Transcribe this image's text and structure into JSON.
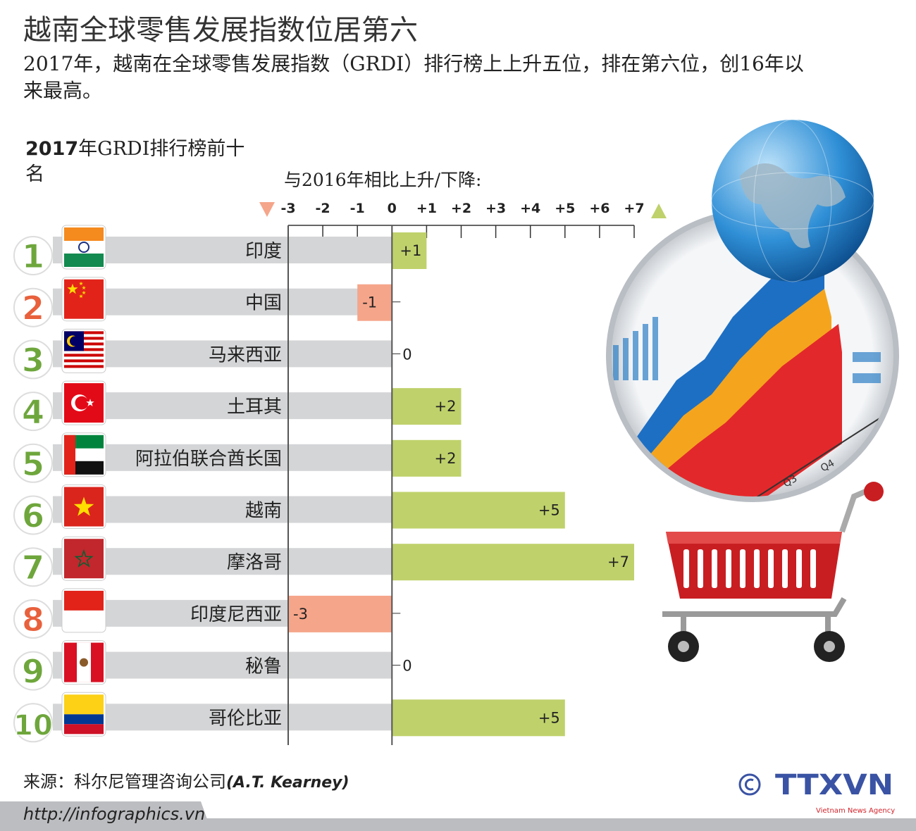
{
  "title": "越南全球零售发展指数位居第六",
  "subtitle": "2017年，越南在全球零售发展指数（GRDI）排行榜上上升五位，排在第六位，创16年以来最高。",
  "list_title_bold": "2017",
  "list_title_rest": "年GRDI排行榜前十名",
  "source_label": "来源：科尔尼管理咨询公司",
  "source_name": "(A.T. Kearney)",
  "url": "http://infographics.vn",
  "logo": {
    "copyright": "©",
    "brand": "TTXVN",
    "tagline": "Vietnam News Agency"
  },
  "colors": {
    "up": "#bfd16b",
    "down": "#f5a58a",
    "track": "#d4d5d7",
    "rank": "#6ea63c",
    "rank_alt": "#e8603c"
  },
  "chart_data": {
    "type": "bar",
    "orientation": "horizontal",
    "title": "与2016年相比上升/下降:",
    "xlim": [
      -3,
      7
    ],
    "ticks": [
      "-3",
      "-2",
      "-1",
      "0",
      "+1",
      "+2",
      "+3",
      "+4",
      "+5",
      "+6",
      "+7"
    ],
    "categories": [
      "印度",
      "中国",
      "马来西亚",
      "土耳其",
      "阿拉伯联合酋长国",
      "越南",
      "摩洛哥",
      "印度尼西亚",
      "秘鲁",
      "哥伦比亚"
    ],
    "ranks": [
      "1",
      "2",
      "3",
      "4",
      "5",
      "6",
      "7",
      "8",
      "9",
      "10"
    ],
    "flags": [
      "india",
      "china",
      "malaysia",
      "turkey",
      "uae",
      "vietnam",
      "morocco",
      "indonesia",
      "peru",
      "colombia"
    ],
    "values": [
      1,
      -1,
      0,
      2,
      2,
      5,
      7,
      -3,
      0,
      5
    ],
    "labels": [
      "+1",
      "-1",
      "0",
      "+2",
      "+2",
      "+5",
      "+7",
      "-3",
      "0",
      "+5"
    ]
  }
}
